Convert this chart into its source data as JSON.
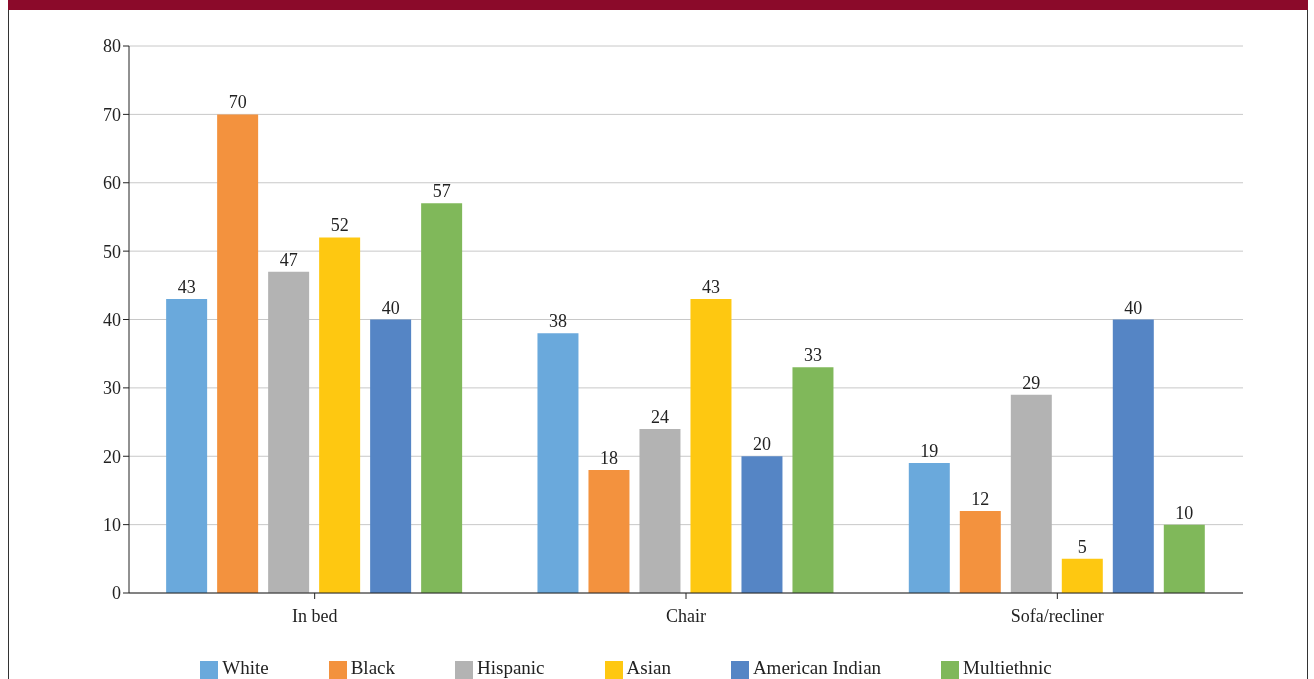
{
  "chart_data": {
    "type": "bar",
    "categories": [
      "In bed",
      "Chair",
      "Sofa/recliner"
    ],
    "series": [
      {
        "name": "White",
        "color": "#6aa9dc",
        "values": [
          43,
          38,
          19
        ]
      },
      {
        "name": "Black",
        "color": "#f3923e",
        "values": [
          70,
          18,
          12
        ]
      },
      {
        "name": "Hispanic",
        "color": "#b3b3b3",
        "values": [
          47,
          24,
          29
        ]
      },
      {
        "name": "Asian",
        "color": "#fec811",
        "values": [
          52,
          43,
          5
        ]
      },
      {
        "name": "American Indian",
        "color": "#5585c5",
        "values": [
          40,
          20,
          40
        ]
      },
      {
        "name": "Multiethnic",
        "color": "#80b85a",
        "values": [
          57,
          33,
          10
        ]
      }
    ],
    "ylim": [
      0,
      80
    ],
    "yticks": [
      0,
      10,
      20,
      30,
      40,
      50,
      60,
      70,
      80
    ],
    "grid": "y",
    "legend": "bottom",
    "data_labels": true
  }
}
